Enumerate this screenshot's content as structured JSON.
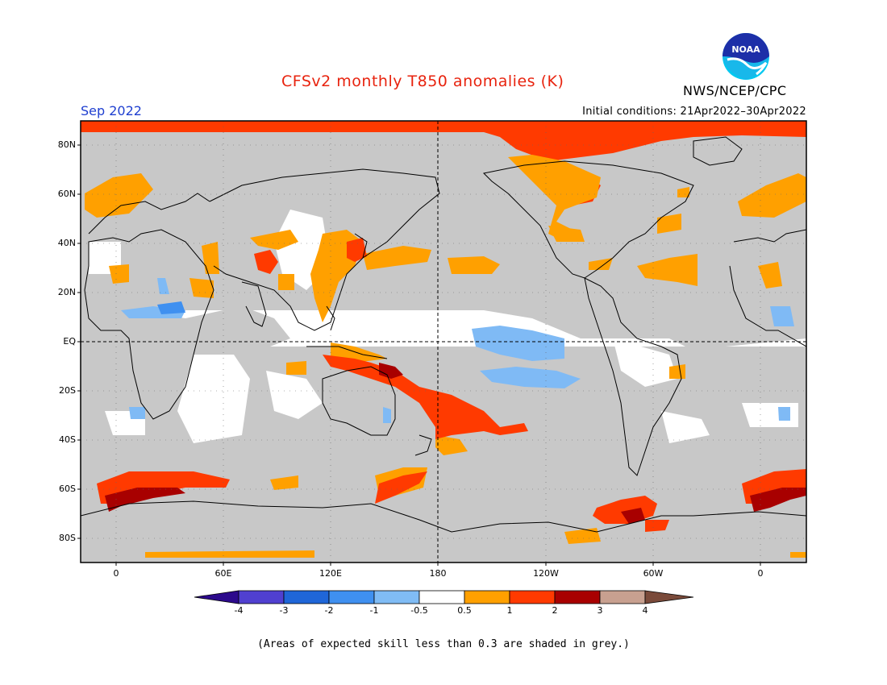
{
  "header": {
    "title": "CFSv2 monthly T850 anomalies (K)",
    "organization": "NWS/NCEP/CPC",
    "logo_text": "NOAA",
    "target_month": "Sep 2022",
    "initial_conditions": "Initial conditions: 21Apr2022–30Apr2022"
  },
  "map": {
    "projection": "equirectangular, centered on 180",
    "lat_labels": [
      "80N",
      "60N",
      "40N",
      "20N",
      "EQ",
      "20S",
      "40S",
      "60S",
      "80S"
    ],
    "lon_labels": [
      "0",
      "60E",
      "120E",
      "180",
      "120W",
      "60W",
      "0"
    ],
    "grey_meaning": "expected skill < 0.3",
    "anomaly_regions": [
      {
        "name": "arctic-cap",
        "category": "1 to 2",
        "color": "#ff3a00"
      },
      {
        "name": "greenland",
        "category": "1 to 2",
        "color": "#ff3a00"
      },
      {
        "name": "west-pacific-australia-band",
        "category": "1 to 2",
        "color": "#ff3a00"
      },
      {
        "name": "southwest-pacific",
        "category": "1 to 2",
        "color": "#ff3a00"
      },
      {
        "name": "southern-ocean-atlantic-indian",
        "category": "1 to 3",
        "color": "#ff3a00"
      },
      {
        "name": "antarctic-peninsula",
        "category": "2 to 3",
        "color": "#a70000"
      },
      {
        "name": "east-asia",
        "category": "0.5 to 1",
        "color": "#ffa000"
      },
      {
        "name": "central-north-pacific",
        "category": "0.5 to 1",
        "color": "#ffa000"
      },
      {
        "name": "east-pacific-equatorial",
        "category": "-1 to -0.5",
        "color": "#7fbaf5"
      },
      {
        "name": "south-east-pacific",
        "category": "-1 to -0.5",
        "color": "#7fbaf5"
      }
    ]
  },
  "colorbar": {
    "labels": [
      "-4",
      "-3",
      "-2",
      "-1",
      "-0.5",
      "0.5",
      "1",
      "2",
      "3",
      "4"
    ],
    "colors": [
      "#2c0a8c",
      "#5040d0",
      "#1f66d8",
      "#3f90f0",
      "#80bcf5",
      "#ffffff",
      "#ffa000",
      "#ff3a00",
      "#a80000",
      "#c8a090",
      "#7a4a3a"
    ]
  },
  "footnote": "(Areas of expected skill less than 0.3 are shaded in grey.)"
}
